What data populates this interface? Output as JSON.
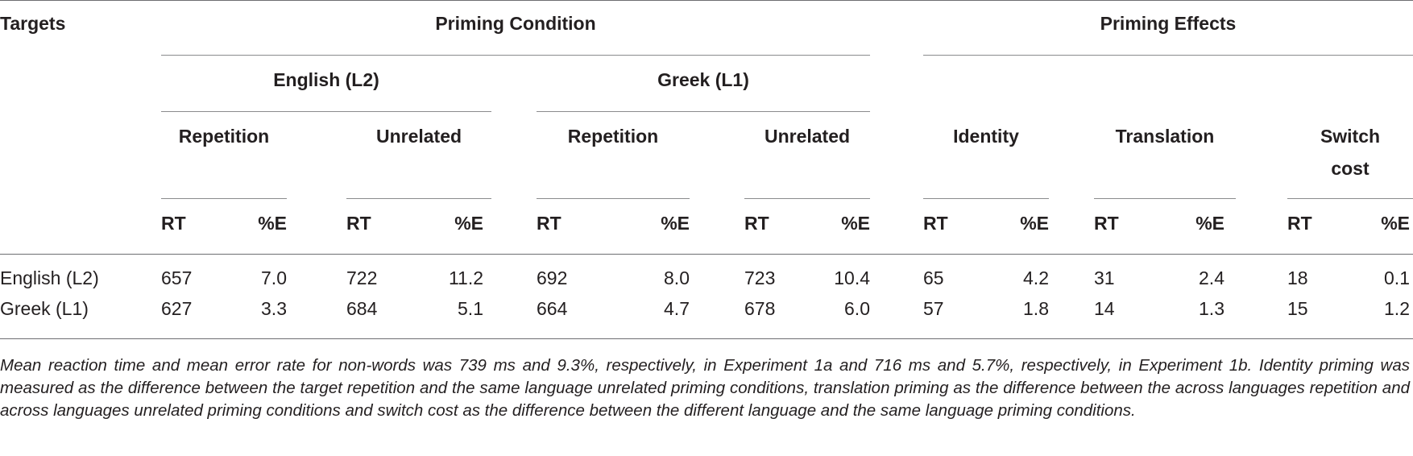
{
  "table": {
    "header": {
      "targets": "Targets",
      "priming_condition": "Priming Condition",
      "priming_effects": "Priming Effects",
      "english_l2": "English (L2)",
      "greek_l1": "Greek (L1)",
      "repetition": "Repetition",
      "unrelated": "Unrelated",
      "identity": "Identity",
      "translation": "Translation",
      "switch_cost": [
        "Switch",
        "cost"
      ],
      "rt": "RT",
      "pct_e": "%E"
    },
    "rows": [
      {
        "target": "English (L2)",
        "values": [
          "657",
          "7.0",
          "722",
          "11.2",
          "692",
          "8.0",
          "723",
          "10.4",
          "65",
          "4.2",
          "31",
          "2.4",
          "18",
          "0.1"
        ]
      },
      {
        "target": "Greek (L1)",
        "values": [
          "627",
          "3.3",
          "684",
          "5.1",
          "664",
          "4.7",
          "678",
          "6.0",
          "57",
          "1.8",
          "14",
          "1.3",
          "15",
          "1.2"
        ]
      }
    ]
  },
  "note": "Mean reaction time and mean error rate for non-words was 739 ms and 9.3%, respectively, in Experiment 1a and 716 ms and 5.7%, respectively, in Experiment 1b. Identity priming was measured as the difference between the target repetition and the same language unrelated priming conditions, translation priming as the difference between the across languages repetition and across languages unrelated priming conditions and switch cost as the difference between the different language and the same language priming conditions."
}
